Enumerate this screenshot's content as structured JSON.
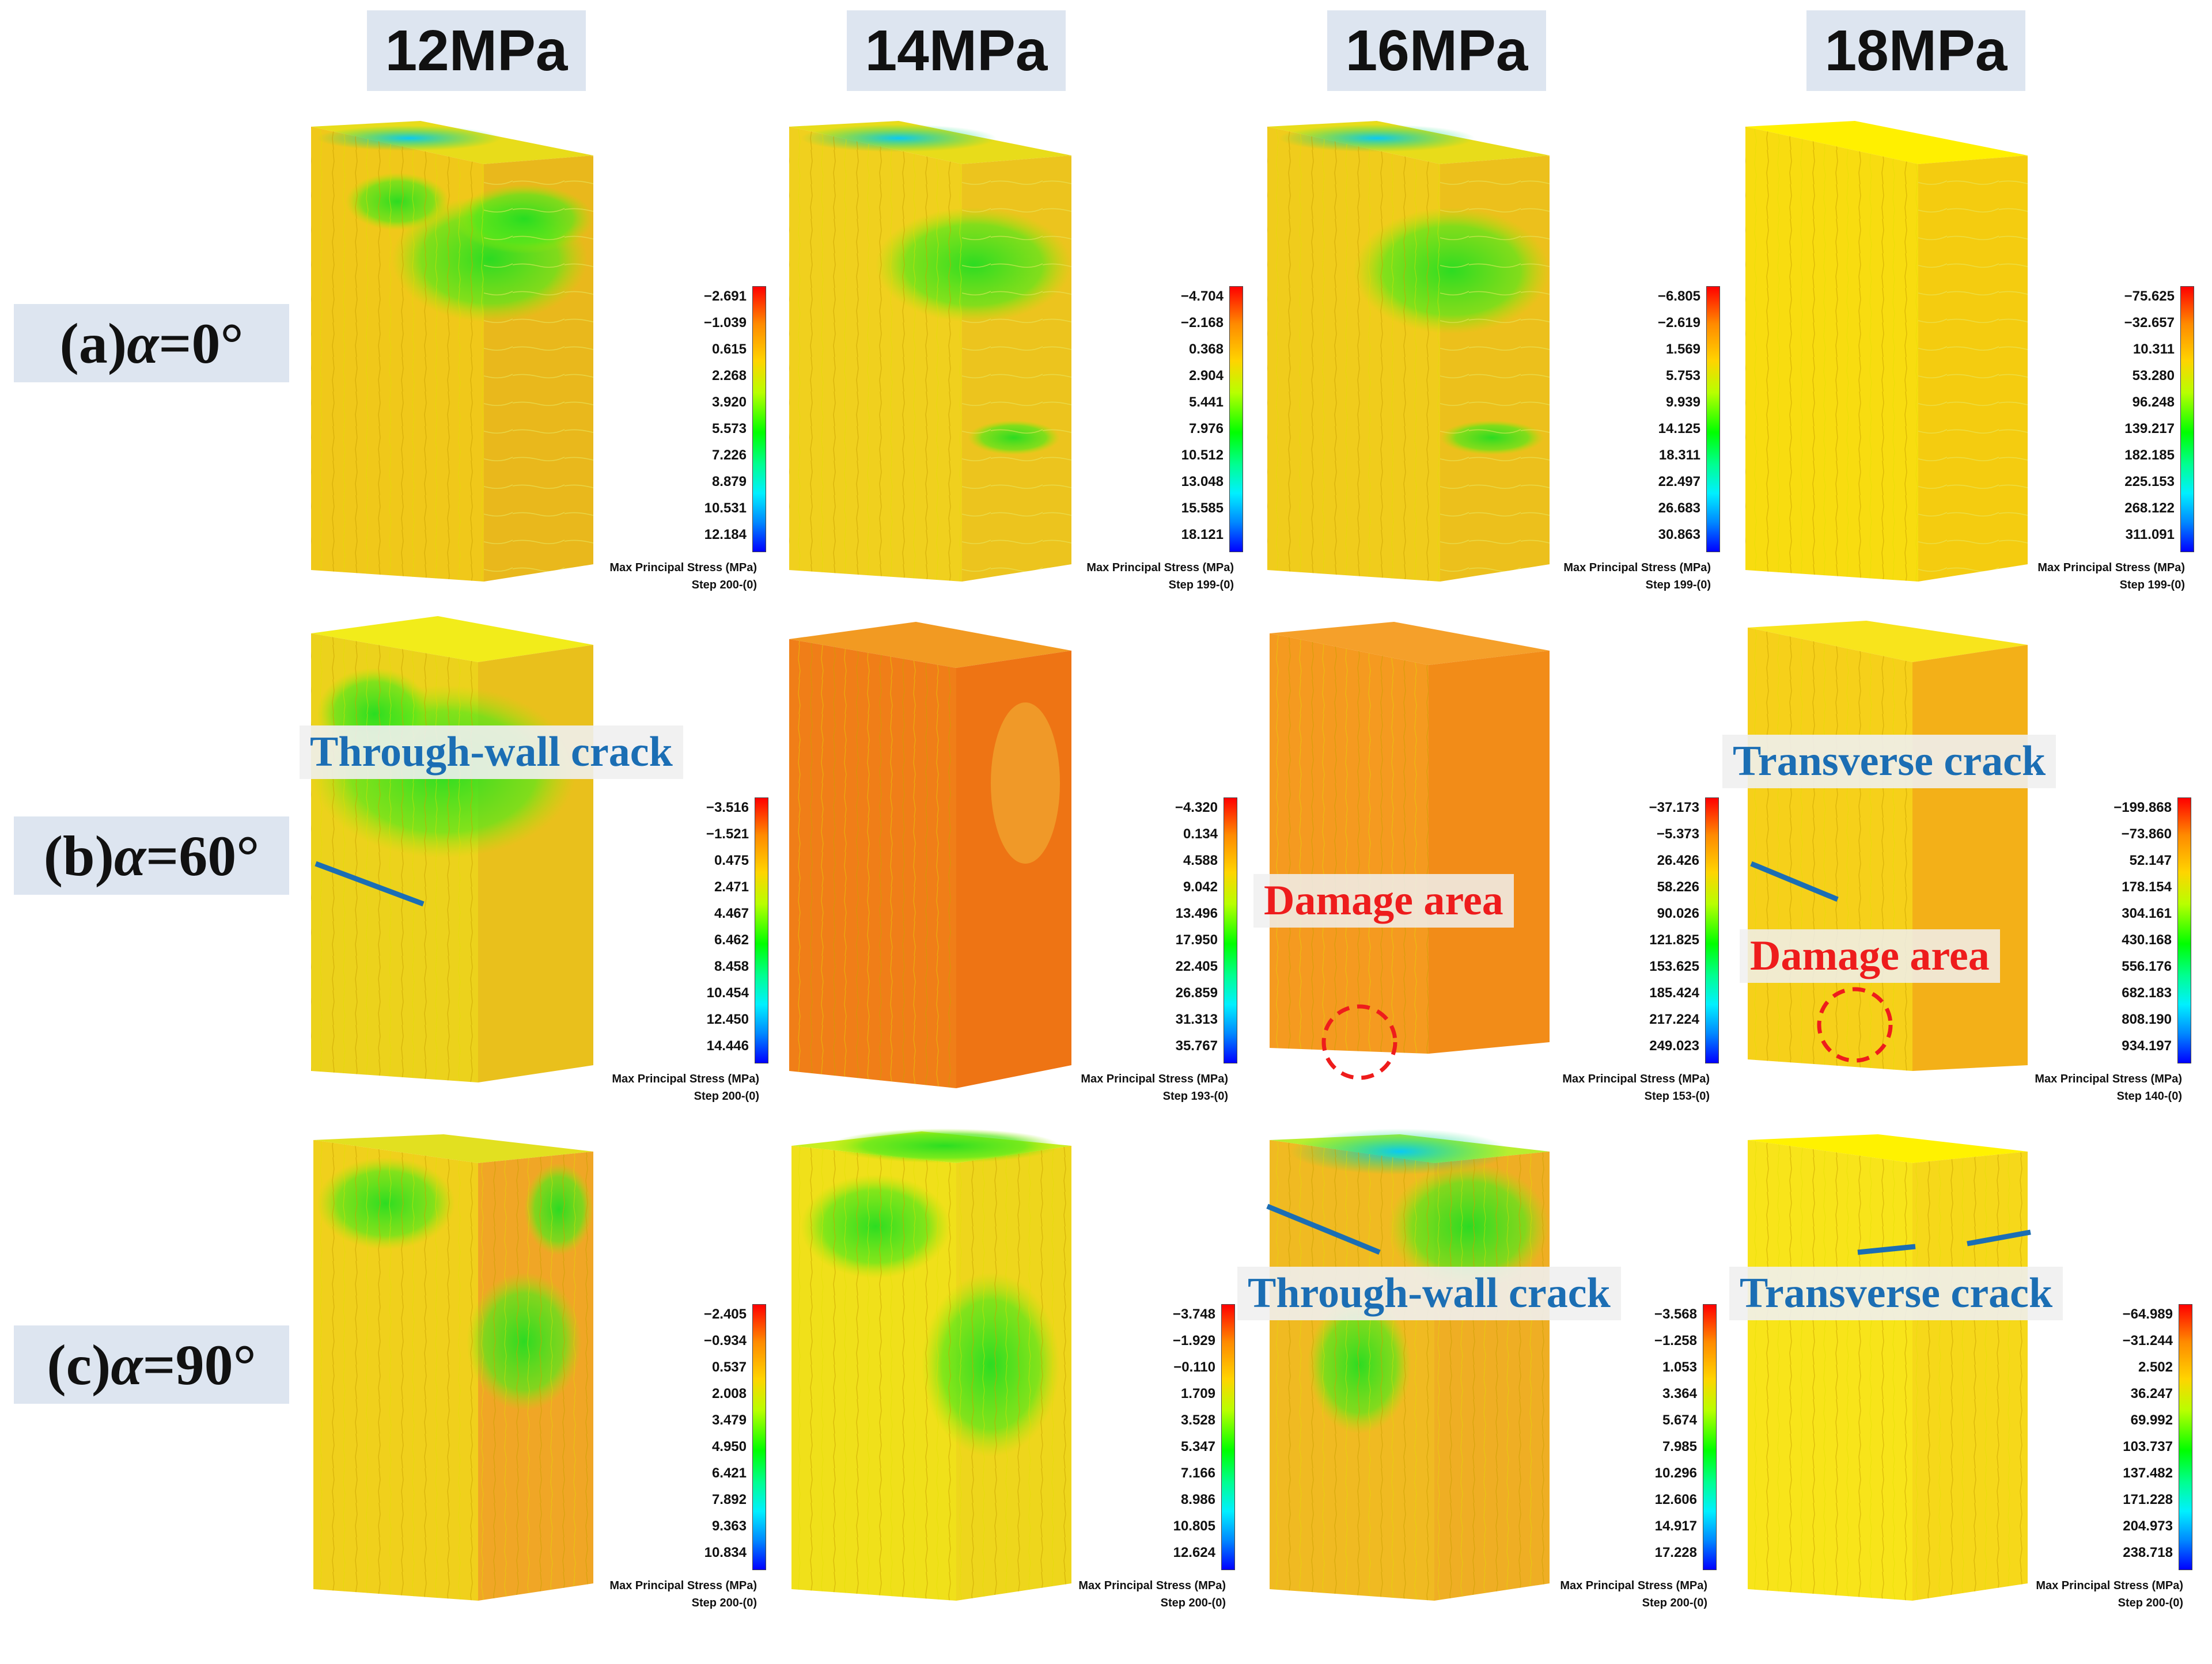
{
  "columns": [
    "12MPa",
    "14MPa",
    "16MPa",
    "18MPa"
  ],
  "rows": [
    {
      "prefix": "(a) ",
      "symbol": "α",
      "value": "=0°"
    },
    {
      "prefix": "(b) ",
      "symbol": "α",
      "value": "=60°"
    },
    {
      "prefix": "(c) ",
      "symbol": "α",
      "value": "=90°"
    }
  ],
  "legend_title": "Max Principal Stress (MPa)",
  "legends": {
    "a_12": {
      "ticks": [
        "−2.691",
        "−1.039",
        "0.615",
        "2.268",
        "3.920",
        "5.573",
        "7.226",
        "8.879",
        "10.531",
        "12.184"
      ],
      "step": "Step 200-(0)"
    },
    "a_14": {
      "ticks": [
        "−4.704",
        "−2.168",
        "0.368",
        "2.904",
        "5.441",
        "7.976",
        "10.512",
        "13.048",
        "15.585",
        "18.121"
      ],
      "step": "Step 199-(0)"
    },
    "a_16": {
      "ticks": [
        "−6.805",
        "−2.619",
        "1.569",
        "5.753",
        "9.939",
        "14.125",
        "18.311",
        "22.497",
        "26.683",
        "30.863"
      ],
      "step": "Step 199-(0)"
    },
    "a_18": {
      "ticks": [
        "−75.625",
        "−32.657",
        "10.311",
        "53.280",
        "96.248",
        "139.217",
        "182.185",
        "225.153",
        "268.122",
        "311.091"
      ],
      "step": "Step 199-(0)"
    },
    "b_12": {
      "ticks": [
        "−3.516",
        "−1.521",
        "0.475",
        "2.471",
        "4.467",
        "6.462",
        "8.458",
        "10.454",
        "12.450",
        "14.446"
      ],
      "step": "Step 200-(0)"
    },
    "b_14": {
      "ticks": [
        "−4.320",
        "0.134",
        "4.588",
        "9.042",
        "13.496",
        "17.950",
        "22.405",
        "26.859",
        "31.313",
        "35.767"
      ],
      "step": "Step 193-(0)"
    },
    "b_16": {
      "ticks": [
        "−37.173",
        "−5.373",
        "26.426",
        "58.226",
        "90.026",
        "121.825",
        "153.625",
        "185.424",
        "217.224",
        "249.023"
      ],
      "step": "Step 153-(0)"
    },
    "b_18": {
      "ticks": [
        "−199.868",
        "−73.860",
        "52.147",
        "178.154",
        "304.161",
        "430.168",
        "556.176",
        "682.183",
        "808.190",
        "934.197"
      ],
      "step": "Step 140-(0)"
    },
    "c_12": {
      "ticks": [
        "−2.405",
        "−0.934",
        "0.537",
        "2.008",
        "3.479",
        "4.950",
        "6.421",
        "7.892",
        "9.363",
        "10.834"
      ],
      "step": "Step 200-(0)"
    },
    "c_14": {
      "ticks": [
        "−3.748",
        "−1.929",
        "−0.110",
        "1.709",
        "3.528",
        "5.347",
        "7.166",
        "8.986",
        "10.805",
        "12.624"
      ],
      "step": "Step 200-(0)"
    },
    "c_16": {
      "ticks": [
        "−3.568",
        "−1.258",
        "1.053",
        "3.364",
        "5.674",
        "7.985",
        "10.296",
        "12.606",
        "14.917",
        "17.228"
      ],
      "step": "Step 200-(0)"
    },
    "c_18": {
      "ticks": [
        "−64.989",
        "−31.244",
        "2.502",
        "36.247",
        "69.992",
        "103.737",
        "137.482",
        "171.228",
        "204.973",
        "238.718"
      ],
      "step": "Step 200-(0)"
    }
  },
  "annotations": {
    "through_wall_crack": "Through-wall crack",
    "transverse_crack": "Transverse crack",
    "damage_area": "Damage area"
  },
  "colors": {
    "label_bg": "#dde5f0",
    "annotation_blue": "#1b6eb4",
    "annotation_red": "#ee1c1c"
  }
}
